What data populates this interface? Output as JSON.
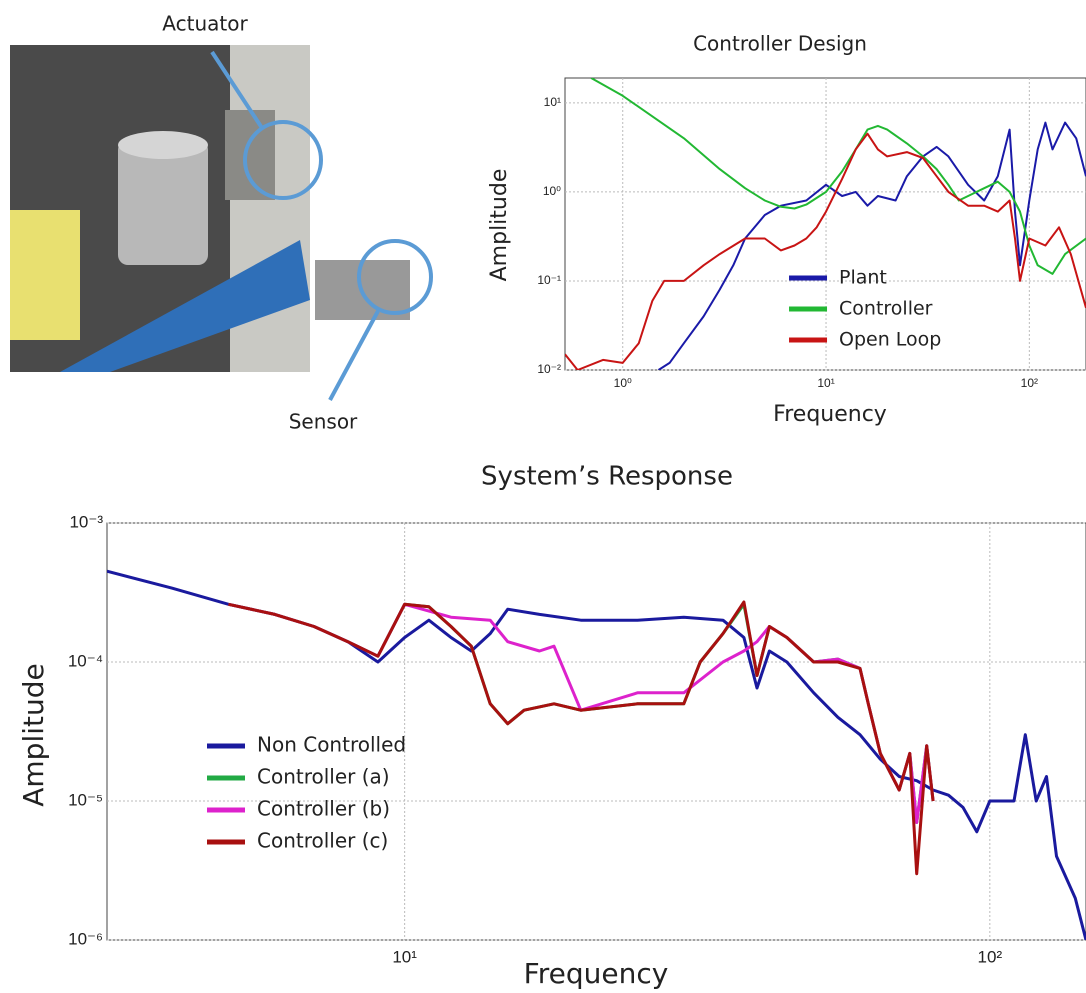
{
  "photo": {
    "labels": [
      "Actuator",
      "Sensor"
    ]
  },
  "chart_data": [
    {
      "type": "line",
      "title": "Controller Design",
      "x_label": "Frequency",
      "y_label": "Amplitude",
      "xscale": "log",
      "yscale": "log",
      "grid": true,
      "legend": "lower center",
      "xlim": [
        0.52,
        190
      ],
      "ylim": [
        0.01,
        19
      ],
      "xticks": [
        {
          "value": 1,
          "label": "10⁰"
        },
        {
          "value": 10,
          "label": "10¹"
        },
        {
          "value": 100,
          "label": "10²"
        }
      ],
      "yticks": [
        {
          "value": 0.01,
          "label": "10⁻²"
        },
        {
          "value": 0.1,
          "label": "10⁻¹"
        },
        {
          "value": 1,
          "label": "10⁰"
        },
        {
          "value": 10,
          "label": "10¹"
        }
      ],
      "series": [
        {
          "name": "Plant",
          "color": "#1a1aa8",
          "x": [
            1.5,
            1.7,
            2,
            2.5,
            3,
            3.5,
            4,
            5,
            6,
            8,
            10,
            12,
            14,
            16,
            18,
            22,
            25,
            30,
            35,
            40,
            50,
            60,
            70,
            80,
            85,
            90,
            100,
            110,
            120,
            130,
            150,
            170,
            190
          ],
          "values": [
            0.01,
            0.012,
            0.02,
            0.04,
            0.08,
            0.15,
            0.3,
            0.55,
            0.7,
            0.8,
            1.2,
            0.9,
            1.0,
            0.7,
            0.9,
            0.8,
            1.5,
            2.5,
            3.2,
            2.5,
            1.2,
            0.8,
            1.5,
            5,
            0.6,
            0.15,
            0.8,
            3,
            6,
            3,
            6,
            4,
            1.5
          ]
        },
        {
          "name": "Controller",
          "color": "#22b833",
          "x": [
            0.7,
            1,
            2,
            3,
            4,
            5,
            6,
            7,
            8,
            10,
            12,
            14,
            16,
            18,
            20,
            25,
            30,
            35,
            40,
            45,
            50,
            60,
            70,
            80,
            90,
            100,
            110,
            130,
            150,
            190
          ],
          "values": [
            19,
            12,
            4,
            1.8,
            1.1,
            0.8,
            0.68,
            0.65,
            0.72,
            1.0,
            1.7,
            3,
            5,
            5.5,
            5,
            3.5,
            2.5,
            1.8,
            1.2,
            0.8,
            0.9,
            1.1,
            1.3,
            1.0,
            0.6,
            0.25,
            0.15,
            0.12,
            0.2,
            0.3
          ]
        },
        {
          "name": "Open Loop",
          "color": "#c81414",
          "x": [
            0.52,
            0.6,
            0.8,
            1,
            1.2,
            1.4,
            1.6,
            2,
            2.5,
            3,
            4,
            5,
            6,
            7,
            8,
            9,
            10,
            12,
            14,
            16,
            18,
            20,
            25,
            30,
            35,
            40,
            50,
            60,
            70,
            80,
            85,
            90,
            100,
            120,
            140,
            160,
            190
          ],
          "values": [
            0.015,
            0.01,
            0.013,
            0.012,
            0.02,
            0.06,
            0.1,
            0.1,
            0.15,
            0.2,
            0.3,
            0.3,
            0.22,
            0.25,
            0.3,
            0.4,
            0.6,
            1.4,
            3,
            4.5,
            3,
            2.5,
            2.8,
            2.4,
            1.5,
            1.0,
            0.7,
            0.7,
            0.6,
            0.8,
            0.3,
            0.1,
            0.3,
            0.25,
            0.4,
            0.2,
            0.05
          ]
        }
      ]
    },
    {
      "type": "line",
      "title": "System’s Response",
      "x_label": "Frequency",
      "y_label": "Amplitude",
      "xscale": "log",
      "yscale": "log",
      "grid": true,
      "legend": "lower left",
      "xlim": [
        3.1,
        146
      ],
      "ylim": [
        1e-06,
        0.001
      ],
      "xticks": [
        {
          "value": 10,
          "label": "10¹"
        },
        {
          "value": 100,
          "label": "10²"
        }
      ],
      "yticks": [
        {
          "value": 1e-06,
          "label": "10⁻⁶"
        },
        {
          "value": 1e-05,
          "label": "10⁻⁵"
        },
        {
          "value": 0.0001,
          "label": "10⁻⁴"
        },
        {
          "value": 0.001,
          "label": "10⁻³"
        }
      ],
      "series": [
        {
          "name": "Non Controlled",
          "color": "#1a1a9e",
          "x": [
            3.1,
            4,
            5,
            6,
            7,
            8,
            9,
            10,
            11,
            12,
            13,
            14,
            15,
            17,
            20,
            25,
            30,
            35,
            38,
            40,
            42,
            45,
            50,
            55,
            60,
            65,
            70,
            75,
            80,
            85,
            90,
            95,
            100,
            110,
            115,
            120,
            125,
            130,
            140,
            146
          ],
          "values": [
            0.00045,
            0.00034,
            0.00026,
            0.00022,
            0.00018,
            0.00014,
            0.0001,
            0.00015,
            0.0002,
            0.00015,
            0.00012,
            0.00016,
            0.00024,
            0.00022,
            0.0002,
            0.0002,
            0.00021,
            0.0002,
            0.00015,
            6.5e-05,
            0.00012,
            0.0001,
            6e-05,
            4e-05,
            3e-05,
            2e-05,
            1.5e-05,
            1.4e-05,
            1.2e-05,
            1.1e-05,
            9e-06,
            6e-06,
            1e-05,
            1e-05,
            3e-05,
            1e-05,
            1.5e-05,
            4e-06,
            2e-06,
            1e-06
          ]
        },
        {
          "name": "Controller (a)",
          "color": "#22aa44",
          "x": [
            5,
            6,
            7,
            8,
            9,
            10,
            11,
            12,
            13,
            14,
            15,
            16,
            18,
            20,
            25,
            30,
            32,
            35,
            38,
            40,
            42,
            45,
            50,
            55,
            60,
            62,
            65,
            70,
            73,
            75,
            78,
            80
          ],
          "values": [
            0.00026,
            0.00022,
            0.00018,
            0.00014,
            0.00011,
            0.00026,
            0.00025,
            0.00018,
            0.00013,
            5e-05,
            3.6e-05,
            4.5e-05,
            5e-05,
            4.5e-05,
            5e-05,
            5e-05,
            0.0001,
            0.00016,
            0.00026,
            8e-05,
            0.00018,
            0.00015,
            0.0001,
            0.000105,
            9e-05,
            5e-05,
            2.2e-05,
            1.2e-05,
            2.2e-05,
            7e-06,
            2.5e-05,
            1e-05
          ]
        },
        {
          "name": "Controller (b)",
          "color": "#dd22cc",
          "x": [
            5,
            6,
            7,
            8,
            9,
            10,
            12,
            14,
            15,
            17,
            18,
            20,
            25,
            30,
            35,
            38,
            40,
            42,
            45,
            50,
            55,
            60,
            62,
            65,
            70,
            73,
            75,
            78,
            80
          ],
          "values": [
            0.00026,
            0.00022,
            0.00018,
            0.00014,
            0.00011,
            0.00026,
            0.00021,
            0.0002,
            0.00014,
            0.00012,
            0.00013,
            4.5e-05,
            6e-05,
            6e-05,
            0.0001,
            0.00012,
            0.00014,
            0.00018,
            0.00015,
            0.0001,
            0.000105,
            9e-05,
            5e-05,
            2.2e-05,
            1.2e-05,
            2.2e-05,
            7e-06,
            2.5e-05,
            1e-05
          ]
        },
        {
          "name": "Controller (c)",
          "color": "#a81010",
          "x": [
            5,
            6,
            7,
            8,
            9,
            10,
            11,
            12,
            13,
            14,
            15,
            16,
            18,
            20,
            25,
            30,
            32,
            35,
            38,
            40,
            42,
            45,
            50,
            55,
            60,
            62,
            65,
            70,
            73,
            75,
            78,
            80
          ],
          "values": [
            0.00026,
            0.00022,
            0.00018,
            0.00014,
            0.00011,
            0.00026,
            0.00025,
            0.00018,
            0.00013,
            5e-05,
            3.6e-05,
            4.5e-05,
            5e-05,
            4.5e-05,
            5e-05,
            5e-05,
            0.0001,
            0.00016,
            0.00027,
            8e-05,
            0.00018,
            0.00015,
            0.0001,
            0.0001,
            9e-05,
            5e-05,
            2.2e-05,
            1.2e-05,
            2.2e-05,
            3e-06,
            2.5e-05,
            1e-05
          ]
        }
      ]
    }
  ]
}
